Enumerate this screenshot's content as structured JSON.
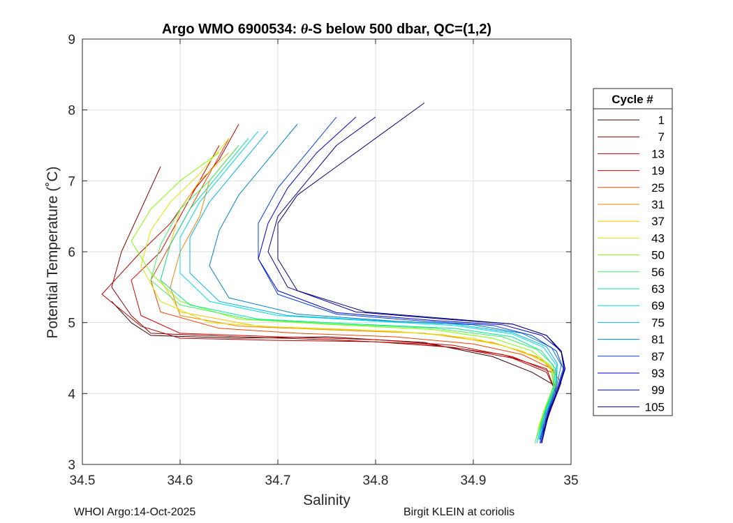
{
  "chart_data": {
    "type": "line",
    "title_prefix": "Argo WMO 6900534: ",
    "title_theta": "θ",
    "title_suffix": "-S below 500 dbar,  QC=(1,2)",
    "xlabel": "Salinity",
    "ylabel": "Potential Temperature (˚C)",
    "xlim": [
      34.5,
      35
    ],
    "ylim": [
      3,
      9
    ],
    "xticks": [
      34.5,
      34.6,
      34.7,
      34.8,
      34.9,
      35
    ],
    "xtick_labels": [
      "34.5",
      "34.6",
      "34.7",
      "34.8",
      "34.9",
      "35"
    ],
    "yticks": [
      3,
      4,
      5,
      6,
      7,
      8,
      9
    ],
    "ytick_labels": [
      "3",
      "4",
      "5",
      "6",
      "7",
      "8",
      "9"
    ],
    "grid": true,
    "legend_title": "Cycle #",
    "legend_position": "outside-right",
    "legend_entries": [
      "1",
      "7",
      "13",
      "19",
      "25",
      "31",
      "37",
      "43",
      "50",
      "56",
      "63",
      "69",
      "75",
      "81",
      "87",
      "93",
      "99",
      "105"
    ],
    "legend_colors": [
      "#3a0000",
      "#8b0000",
      "#b30000",
      "#d60000",
      "#ef4000",
      "#f78000",
      "#ffbf00",
      "#d9e600",
      "#80ff00",
      "#40f060",
      "#00e6a0",
      "#00dcdc",
      "#00b4e6",
      "#0080c8",
      "#0040e0",
      "#0000d0",
      "#00009a",
      "#000070"
    ],
    "series": [
      {
        "name": "1",
        "points": [
          [
            34.53,
            5.3
          ],
          [
            34.55,
            5.0
          ],
          [
            34.57,
            4.82
          ],
          [
            34.66,
            4.78
          ],
          [
            34.75,
            4.8
          ],
          [
            34.85,
            4.72
          ],
          [
            34.92,
            4.52
          ],
          [
            34.96,
            4.3
          ],
          [
            34.985,
            4.1
          ],
          [
            34.975,
            3.8
          ],
          [
            34.97,
            3.5
          ]
        ]
      },
      {
        "name": "7",
        "points": [
          [
            34.58,
            7.2
          ],
          [
            34.56,
            6.6
          ],
          [
            34.54,
            6.0
          ],
          [
            34.53,
            5.5
          ],
          [
            34.55,
            5.1
          ],
          [
            34.57,
            4.85
          ],
          [
            34.66,
            4.8
          ],
          [
            34.75,
            4.76
          ],
          [
            34.85,
            4.7
          ],
          [
            34.93,
            4.55
          ],
          [
            34.975,
            4.35
          ],
          [
            34.982,
            4.1
          ],
          [
            34.972,
            3.7
          ],
          [
            34.965,
            3.4
          ]
        ]
      },
      {
        "name": "13",
        "points": [
          [
            34.66,
            7.8
          ],
          [
            34.64,
            7.3
          ],
          [
            34.61,
            6.8
          ],
          [
            34.59,
            6.4
          ],
          [
            34.56,
            6.0
          ],
          [
            34.52,
            5.4
          ],
          [
            34.56,
            4.95
          ],
          [
            34.6,
            4.78
          ],
          [
            34.7,
            4.75
          ],
          [
            34.8,
            4.73
          ],
          [
            34.88,
            4.65
          ],
          [
            34.94,
            4.5
          ],
          [
            34.975,
            4.3
          ],
          [
            34.985,
            4.0
          ],
          [
            34.975,
            3.6
          ],
          [
            34.968,
            3.35
          ]
        ]
      },
      {
        "name": "19",
        "points": [
          [
            34.64,
            7.5
          ],
          [
            34.62,
            7.0
          ],
          [
            34.6,
            6.5
          ],
          [
            34.58,
            6.0
          ],
          [
            34.55,
            5.6
          ],
          [
            34.56,
            5.1
          ],
          [
            34.6,
            4.85
          ],
          [
            34.7,
            4.8
          ],
          [
            34.8,
            4.76
          ],
          [
            34.88,
            4.68
          ],
          [
            34.94,
            4.52
          ],
          [
            34.98,
            4.3
          ],
          [
            34.985,
            4.0
          ],
          [
            34.975,
            3.7
          ]
        ]
      },
      {
        "name": "25",
        "points": [
          [
            34.65,
            7.6
          ],
          [
            34.63,
            7.1
          ],
          [
            34.61,
            6.6
          ],
          [
            34.59,
            6.1
          ],
          [
            34.57,
            5.6
          ],
          [
            34.58,
            5.15
          ],
          [
            34.64,
            4.92
          ],
          [
            34.72,
            4.85
          ],
          [
            34.82,
            4.8
          ],
          [
            34.9,
            4.7
          ],
          [
            34.95,
            4.55
          ],
          [
            34.98,
            4.35
          ],
          [
            34.99,
            4.15
          ],
          [
            34.98,
            3.8
          ],
          [
            34.97,
            3.5
          ]
        ]
      },
      {
        "name": "31",
        "points": [
          [
            34.66,
            7.5
          ],
          [
            34.63,
            7.0
          ],
          [
            34.62,
            6.5
          ],
          [
            34.6,
            6.0
          ],
          [
            34.59,
            5.5
          ],
          [
            34.6,
            5.1
          ],
          [
            34.66,
            4.95
          ],
          [
            34.75,
            4.9
          ],
          [
            34.85,
            4.85
          ],
          [
            34.92,
            4.72
          ],
          [
            34.965,
            4.52
          ],
          [
            34.985,
            4.3
          ],
          [
            34.985,
            4.05
          ],
          [
            34.975,
            3.75
          ],
          [
            34.968,
            3.45
          ]
        ]
      },
      {
        "name": "37",
        "points": [
          [
            34.65,
            7.4
          ],
          [
            34.62,
            7.0
          ],
          [
            34.6,
            6.6
          ],
          [
            34.59,
            6.1
          ],
          [
            34.58,
            5.6
          ],
          [
            34.6,
            5.15
          ],
          [
            34.68,
            4.95
          ],
          [
            34.78,
            4.9
          ],
          [
            34.87,
            4.83
          ],
          [
            34.93,
            4.68
          ],
          [
            34.97,
            4.48
          ],
          [
            34.985,
            4.25
          ],
          [
            34.982,
            4.0
          ],
          [
            34.972,
            3.7
          ],
          [
            34.965,
            3.4
          ]
        ]
      },
      {
        "name": "43",
        "points": [
          [
            34.65,
            7.6
          ],
          [
            34.62,
            7.1
          ],
          [
            34.59,
            6.7
          ],
          [
            34.57,
            6.3
          ],
          [
            34.56,
            5.8
          ],
          [
            34.58,
            5.3
          ],
          [
            34.63,
            5.0
          ],
          [
            34.72,
            4.92
          ],
          [
            34.82,
            4.88
          ],
          [
            34.9,
            4.78
          ],
          [
            34.95,
            4.6
          ],
          [
            34.978,
            4.4
          ],
          [
            34.983,
            4.15
          ],
          [
            34.975,
            3.85
          ],
          [
            34.966,
            3.5
          ]
        ]
      },
      {
        "name": "50",
        "points": [
          [
            34.64,
            7.4
          ],
          [
            34.6,
            7.0
          ],
          [
            34.57,
            6.6
          ],
          [
            34.55,
            6.15
          ],
          [
            34.57,
            5.7
          ],
          [
            34.6,
            5.3
          ],
          [
            34.66,
            5.05
          ],
          [
            34.76,
            4.97
          ],
          [
            34.86,
            4.9
          ],
          [
            34.92,
            4.78
          ],
          [
            34.96,
            4.6
          ],
          [
            34.98,
            4.38
          ],
          [
            34.982,
            4.1
          ],
          [
            34.972,
            3.75
          ],
          [
            34.964,
            3.35
          ]
        ]
      },
      {
        "name": "56",
        "points": [
          [
            34.66,
            7.5
          ],
          [
            34.63,
            7.0
          ],
          [
            34.6,
            6.6
          ],
          [
            34.58,
            6.1
          ],
          [
            34.57,
            5.6
          ],
          [
            34.6,
            5.25
          ],
          [
            34.67,
            5.05
          ],
          [
            34.76,
            4.98
          ],
          [
            34.86,
            4.92
          ],
          [
            34.93,
            4.8
          ],
          [
            34.965,
            4.62
          ],
          [
            34.982,
            4.4
          ],
          [
            34.982,
            4.1
          ],
          [
            34.972,
            3.7
          ],
          [
            34.963,
            3.3
          ]
        ]
      },
      {
        "name": "63",
        "points": [
          [
            34.67,
            7.6
          ],
          [
            34.64,
            7.1
          ],
          [
            34.61,
            6.6
          ],
          [
            34.59,
            6.1
          ],
          [
            34.58,
            5.6
          ],
          [
            34.61,
            5.25
          ],
          [
            34.68,
            5.05
          ],
          [
            34.78,
            4.98
          ],
          [
            34.88,
            4.92
          ],
          [
            34.94,
            4.8
          ],
          [
            34.97,
            4.6
          ],
          [
            34.984,
            4.35
          ],
          [
            34.982,
            4.05
          ],
          [
            34.972,
            3.7
          ],
          [
            34.965,
            3.3
          ]
        ]
      },
      {
        "name": "69",
        "points": [
          [
            34.68,
            7.7
          ],
          [
            34.65,
            7.2
          ],
          [
            34.62,
            6.7
          ],
          [
            34.6,
            6.2
          ],
          [
            34.6,
            5.7
          ],
          [
            34.63,
            5.3
          ],
          [
            34.7,
            5.1
          ],
          [
            34.8,
            5.02
          ],
          [
            34.88,
            4.96
          ],
          [
            34.94,
            4.84
          ],
          [
            34.972,
            4.65
          ],
          [
            34.985,
            4.4
          ],
          [
            34.984,
            4.1
          ],
          [
            34.974,
            3.75
          ],
          [
            34.966,
            3.35
          ]
        ]
      },
      {
        "name": "75",
        "points": [
          [
            34.69,
            7.7
          ],
          [
            34.66,
            7.2
          ],
          [
            34.63,
            6.7
          ],
          [
            34.61,
            6.2
          ],
          [
            34.61,
            5.7
          ],
          [
            34.64,
            5.3
          ],
          [
            34.71,
            5.1
          ],
          [
            34.8,
            5.03
          ],
          [
            34.88,
            4.98
          ],
          [
            34.94,
            4.86
          ],
          [
            34.975,
            4.66
          ],
          [
            34.986,
            4.42
          ],
          [
            34.985,
            4.1
          ],
          [
            34.975,
            3.75
          ],
          [
            34.967,
            3.35
          ]
        ]
      },
      {
        "name": "81",
        "points": [
          [
            34.72,
            7.8
          ],
          [
            34.69,
            7.3
          ],
          [
            34.66,
            6.8
          ],
          [
            34.64,
            6.3
          ],
          [
            34.63,
            5.8
          ],
          [
            34.65,
            5.35
          ],
          [
            34.72,
            5.12
          ],
          [
            34.82,
            5.02
          ],
          [
            34.9,
            4.97
          ],
          [
            34.95,
            4.85
          ],
          [
            34.98,
            4.65
          ],
          [
            34.99,
            4.4
          ],
          [
            34.985,
            4.1
          ],
          [
            34.976,
            3.75
          ],
          [
            34.968,
            3.35
          ]
        ]
      },
      {
        "name": "87",
        "points": [
          [
            34.76,
            7.9
          ],
          [
            34.73,
            7.4
          ],
          [
            34.7,
            6.9
          ],
          [
            34.68,
            6.4
          ],
          [
            34.68,
            5.9
          ],
          [
            34.7,
            5.4
          ],
          [
            34.76,
            5.12
          ],
          [
            34.85,
            5.02
          ],
          [
            34.92,
            4.96
          ],
          [
            34.96,
            4.82
          ],
          [
            34.985,
            4.6
          ],
          [
            34.992,
            4.35
          ],
          [
            34.985,
            4.05
          ],
          [
            34.975,
            3.7
          ],
          [
            34.968,
            3.3
          ]
        ]
      },
      {
        "name": "93",
        "points": [
          [
            34.78,
            7.9
          ],
          [
            34.74,
            7.4
          ],
          [
            34.71,
            6.9
          ],
          [
            34.69,
            6.4
          ],
          [
            34.68,
            5.9
          ],
          [
            34.7,
            5.45
          ],
          [
            34.76,
            5.14
          ],
          [
            34.86,
            5.03
          ],
          [
            34.93,
            4.97
          ],
          [
            34.97,
            4.82
          ],
          [
            34.99,
            4.6
          ],
          [
            34.993,
            4.35
          ],
          [
            34.986,
            4.05
          ],
          [
            34.976,
            3.7
          ],
          [
            34.969,
            3.3
          ]
        ]
      },
      {
        "name": "99",
        "points": [
          [
            34.8,
            7.9
          ],
          [
            34.76,
            7.5
          ],
          [
            34.73,
            7.0
          ],
          [
            34.7,
            6.5
          ],
          [
            34.69,
            6.0
          ],
          [
            34.71,
            5.5
          ],
          [
            34.78,
            5.15
          ],
          [
            34.87,
            5.05
          ],
          [
            34.94,
            4.98
          ],
          [
            34.975,
            4.82
          ],
          [
            34.99,
            4.58
          ],
          [
            34.993,
            4.32
          ],
          [
            34.986,
            4.02
          ],
          [
            34.976,
            3.68
          ],
          [
            34.97,
            3.3
          ]
        ]
      },
      {
        "name": "105",
        "points": [
          [
            34.85,
            8.1
          ],
          [
            34.8,
            7.6
          ],
          [
            34.76,
            7.2
          ],
          [
            34.72,
            6.8
          ],
          [
            34.7,
            6.4
          ],
          [
            34.7,
            5.9
          ],
          [
            34.72,
            5.45
          ],
          [
            34.79,
            5.15
          ],
          [
            34.88,
            5.05
          ],
          [
            34.94,
            4.98
          ],
          [
            34.975,
            4.82
          ],
          [
            34.99,
            4.6
          ],
          [
            34.994,
            4.35
          ],
          [
            34.987,
            4.05
          ],
          [
            34.977,
            3.7
          ],
          [
            34.97,
            3.3
          ]
        ]
      }
    ]
  },
  "footer": {
    "left": "WHOI Argo:14-Oct-2025",
    "right": "Birgit KLEIN at coriolis"
  }
}
